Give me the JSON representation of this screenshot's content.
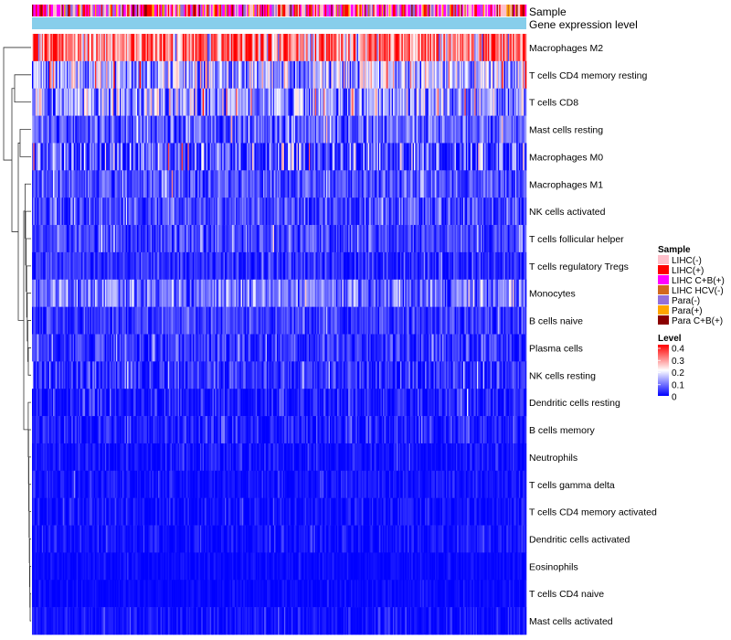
{
  "chart_data": {
    "type": "heatmap",
    "title": "",
    "n_samples": 400,
    "annotation_labels": [
      "Sample",
      "Gene expression level"
    ],
    "rows": [
      {
        "label": "Macrophages M2",
        "mean": 0.3,
        "spread": 0.1
      },
      {
        "label": "T cells CD4 memory resting",
        "mean": 0.13,
        "spread": 0.08
      },
      {
        "label": "T cells CD8",
        "mean": 0.12,
        "spread": 0.08
      },
      {
        "label": "Mast cells resting",
        "mean": 0.07,
        "spread": 0.05
      },
      {
        "label": "Macrophages M0",
        "mean": 0.06,
        "spread": 0.08
      },
      {
        "label": "Macrophages M1",
        "mean": 0.06,
        "spread": 0.04
      },
      {
        "label": "NK cells activated",
        "mean": 0.05,
        "spread": 0.04
      },
      {
        "label": "T cells follicular helper",
        "mean": 0.05,
        "spread": 0.04
      },
      {
        "label": "T cells regulatory  Tregs",
        "mean": 0.03,
        "spread": 0.03
      },
      {
        "label": "Monocytes",
        "mean": 0.09,
        "spread": 0.05
      },
      {
        "label": "B cells naive",
        "mean": 0.04,
        "spread": 0.03
      },
      {
        "label": "Plasma cells",
        "mean": 0.04,
        "spread": 0.04
      },
      {
        "label": "NK cells resting",
        "mean": 0.03,
        "spread": 0.04
      },
      {
        "label": "Dendritic cells resting",
        "mean": 0.02,
        "spread": 0.03
      },
      {
        "label": "B cells memory",
        "mean": 0.02,
        "spread": 0.03
      },
      {
        "label": "Neutrophils",
        "mean": 0.01,
        "spread": 0.02
      },
      {
        "label": "T cells gamma delta",
        "mean": 0.01,
        "spread": 0.02
      },
      {
        "label": "T cells CD4 memory activated",
        "mean": 0.01,
        "spread": 0.02
      },
      {
        "label": "Dendritic cells activated",
        "mean": 0.01,
        "spread": 0.02
      },
      {
        "label": "Eosinophils",
        "mean": 0.005,
        "spread": 0.01
      },
      {
        "label": "T cells CD4 naive",
        "mean": 0.005,
        "spread": 0.01
      },
      {
        "label": "Mast cells activated",
        "mean": 0.01,
        "spread": 0.02
      }
    ],
    "sample_legend": {
      "title": "Sample",
      "items": [
        {
          "label": "LIHC(-)",
          "color": "#ffc0cb"
        },
        {
          "label": "LIHC(+)",
          "color": "#ff0000"
        },
        {
          "label": "LIHC C+B(+)",
          "color": "#ff00ff"
        },
        {
          "label": "LIHC HCV(-)",
          "color": "#d2691e"
        },
        {
          "label": "Para(-)",
          "color": "#9370db"
        },
        {
          "label": "Para(+)",
          "color": "#ffa500"
        },
        {
          "label": "Para C+B(+)",
          "color": "#8b0000"
        }
      ]
    },
    "level_legend": {
      "title": "Level",
      "ticks": [
        "0.4",
        "0.3",
        "0.2",
        "0.1",
        "0"
      ],
      "range": [
        0,
        0.4
      ],
      "colors": {
        "low": "#0000ff",
        "mid": "#ffffff",
        "high": "#ff0000"
      }
    },
    "gene_expression_color": "#87ceeb"
  }
}
